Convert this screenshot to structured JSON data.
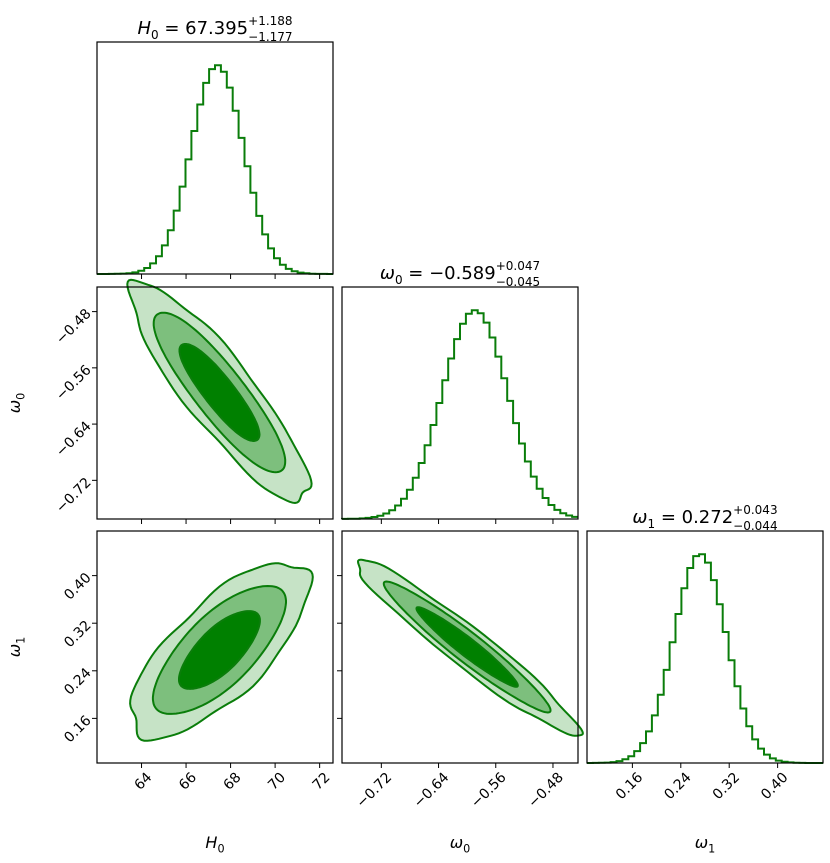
{
  "chart_data": {
    "type": "corner",
    "parameters": [
      {
        "key": "H0",
        "label": "H",
        "label_sub": "0",
        "title_lhs": "H",
        "title_lhs_sub": "0",
        "median": "67.395",
        "upper": "+1.188",
        "lower": "−1.177",
        "range": [
          62.0,
          72.6
        ],
        "ticks": [
          64,
          66,
          68,
          70,
          72
        ],
        "tick_labels": [
          "64",
          "66",
          "68",
          "70",
          "72"
        ]
      },
      {
        "key": "w0",
        "label": "ω",
        "label_sub": "0",
        "title_lhs": "ω",
        "title_lhs_sub": "0",
        "median": "−0.589",
        "upper": "+0.047",
        "lower": "−0.045",
        "range": [
          -0.775,
          -0.445
        ],
        "ticks": [
          -0.72,
          -0.64,
          -0.56,
          -0.48
        ],
        "tick_labels": [
          "−0.72",
          "−0.64",
          "−0.56",
          "−0.48"
        ]
      },
      {
        "key": "w1",
        "label": "ω",
        "label_sub": "1",
        "title_lhs": "ω",
        "title_lhs_sub": "1",
        "median": "0.272",
        "upper": "+0.043",
        "lower": "−0.044",
        "range": [
          0.085,
          0.475
        ],
        "ticks": [
          0.16,
          0.24,
          0.32,
          0.4
        ],
        "tick_labels": [
          "0.16",
          "0.24",
          "0.32",
          "0.40"
        ]
      }
    ],
    "marginals": [
      {
        "param": "H0",
        "mean": 67.4,
        "sigma": 1.18,
        "bins": 40
      },
      {
        "param": "w0",
        "mean": -0.589,
        "sigma": 0.046,
        "bins": 40
      },
      {
        "param": "w1",
        "mean": 0.272,
        "sigma": 0.0435,
        "bins": 40
      }
    ],
    "contours": [
      {
        "x": "H0",
        "y": "w0",
        "center": [
          67.5,
          -0.595
        ],
        "corr": -0.88
      },
      {
        "x": "H0",
        "y": "w1",
        "center": [
          67.5,
          0.275
        ],
        "corr": 0.72
      },
      {
        "x": "w0",
        "y": "w1",
        "center": [
          -0.6,
          0.28
        ],
        "corr": -0.96
      }
    ],
    "contour_levels": [
      "1-sigma",
      "2-sigma",
      "3-sigma"
    ],
    "colors": {
      "line": "#0a7d0a",
      "fill1": "#008000",
      "fill2": "#7dbf7d",
      "fill3": "#c6e3c6",
      "frame": "#000000"
    }
  }
}
